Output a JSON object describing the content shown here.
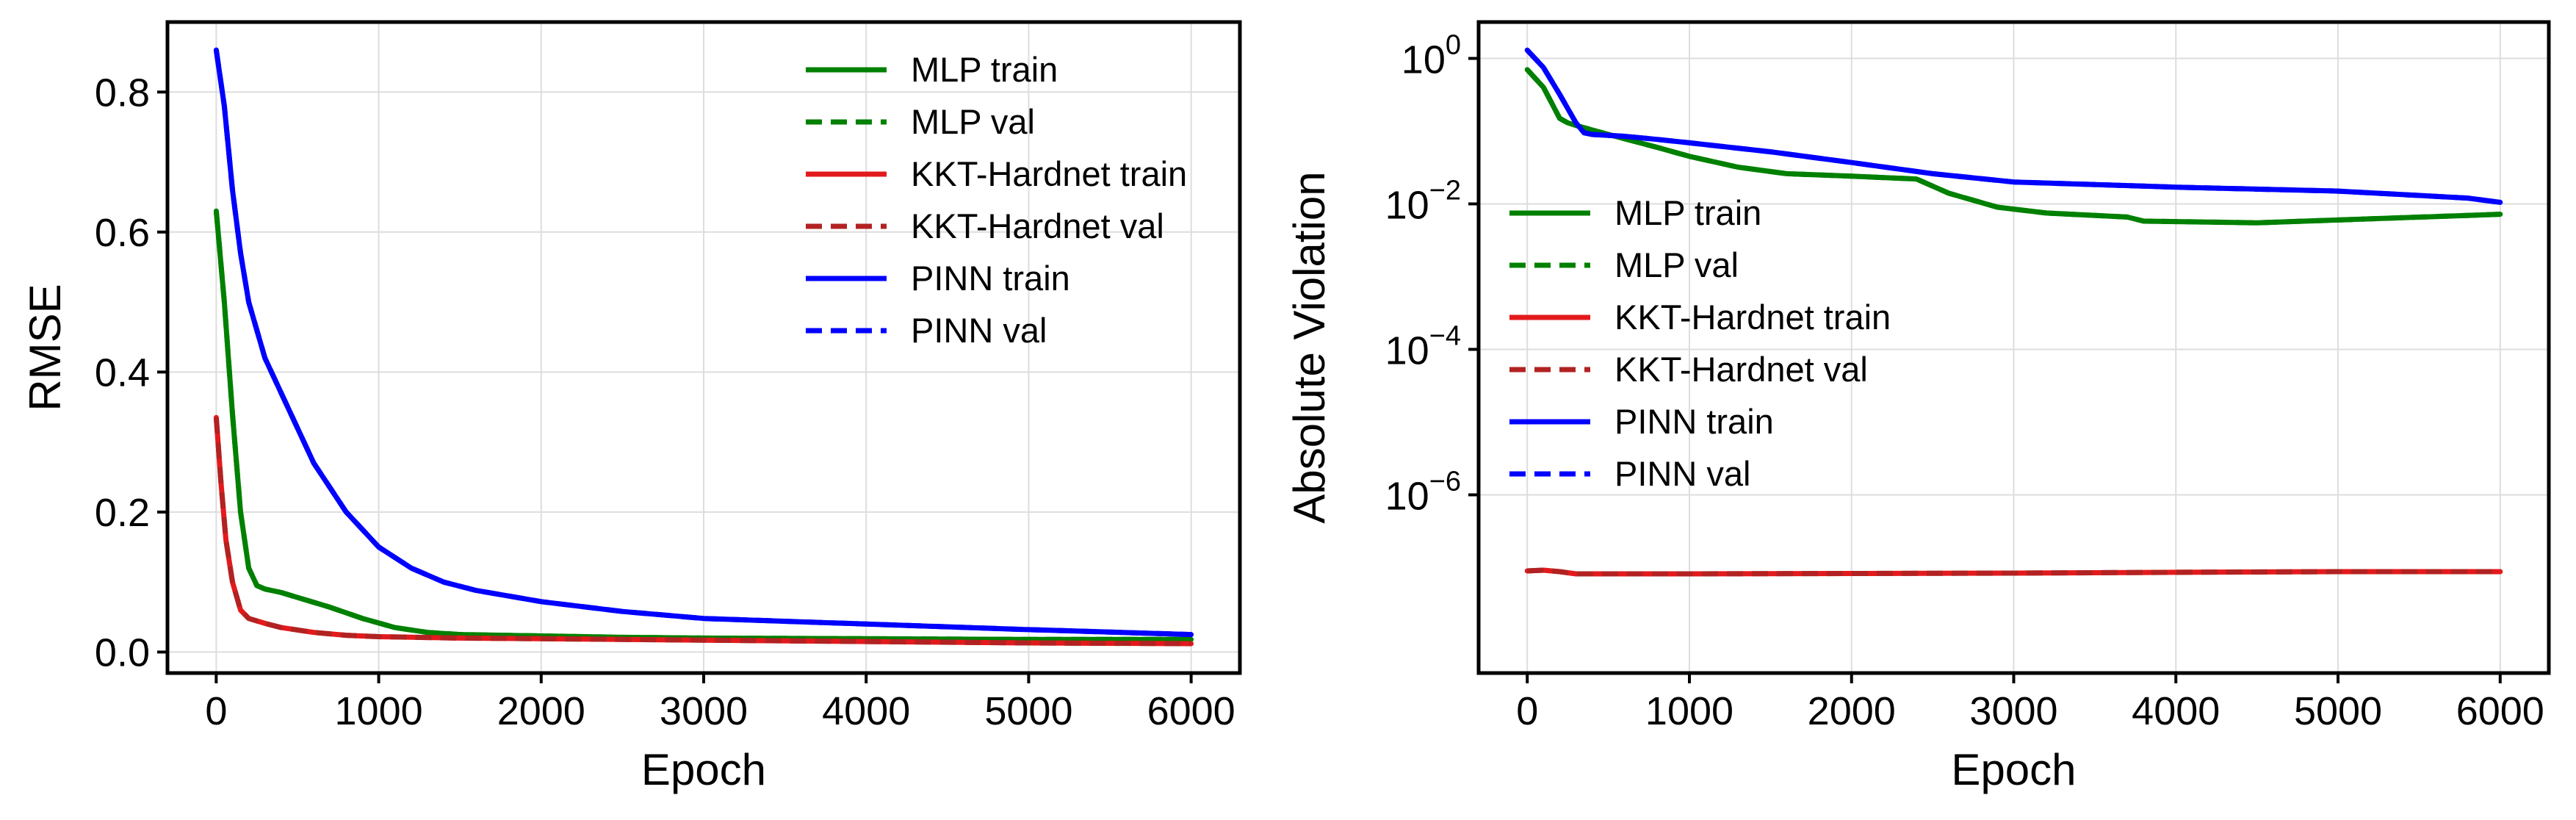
{
  "chart_data": [
    {
      "type": "line",
      "ylabel": "RMSE",
      "xlabel": "Epoch",
      "xlim": [
        -300,
        6300
      ],
      "ylim": [
        -0.03,
        0.9
      ],
      "yscale": "linear",
      "grid": true,
      "legend_position": "top-right",
      "xticks": [
        0,
        1000,
        2000,
        3000,
        4000,
        5000,
        6000
      ],
      "xtick_labels": [
        "0",
        "1000",
        "2000",
        "3000",
        "4000",
        "5000",
        "6000"
      ],
      "yticks": [
        0.0,
        0.2,
        0.4,
        0.6,
        0.8
      ],
      "ytick_labels": [
        "0.0",
        "0.2",
        "0.4",
        "0.6",
        "0.8"
      ],
      "series": [
        {
          "name": "MLP train",
          "color": "#008000",
          "dash": false,
          "x": [
            0,
            50,
            100,
            150,
            200,
            250,
            300,
            400,
            500,
            700,
            900,
            1100,
            1300,
            1500,
            2000,
            2500,
            3000,
            4000,
            5000,
            6000
          ],
          "y": [
            0.63,
            0.5,
            0.34,
            0.2,
            0.12,
            0.095,
            0.09,
            0.085,
            0.078,
            0.064,
            0.048,
            0.035,
            0.028,
            0.025,
            0.023,
            0.021,
            0.02,
            0.019,
            0.018,
            0.018
          ]
        },
        {
          "name": "MLP val",
          "color": "#008000",
          "dash": true,
          "x": [
            0,
            50,
            100,
            150,
            200,
            250,
            300,
            400,
            500,
            700,
            900,
            1100,
            1300,
            1500,
            2000,
            2500,
            3000,
            4000,
            5000,
            6000
          ],
          "y": [
            0.63,
            0.5,
            0.34,
            0.2,
            0.12,
            0.095,
            0.09,
            0.085,
            0.078,
            0.064,
            0.048,
            0.035,
            0.028,
            0.025,
            0.023,
            0.021,
            0.02,
            0.019,
            0.018,
            0.018
          ]
        },
        {
          "name": "KKT-Hardnet train",
          "color": "#e31a1c",
          "dash": false,
          "x": [
            0,
            30,
            60,
            100,
            150,
            200,
            300,
            400,
            600,
            800,
            1000,
            1500,
            2000,
            3000,
            4000,
            5000,
            6000
          ],
          "y": [
            0.335,
            0.24,
            0.16,
            0.1,
            0.06,
            0.048,
            0.041,
            0.035,
            0.028,
            0.024,
            0.022,
            0.02,
            0.019,
            0.017,
            0.015,
            0.013,
            0.012
          ]
        },
        {
          "name": "KKT-Hardnet val",
          "color": "#b22222",
          "dash": true,
          "x": [
            0,
            30,
            60,
            100,
            150,
            200,
            300,
            400,
            600,
            800,
            1000,
            1500,
            2000,
            3000,
            4000,
            5000,
            6000
          ],
          "y": [
            0.335,
            0.24,
            0.16,
            0.1,
            0.06,
            0.048,
            0.041,
            0.035,
            0.028,
            0.024,
            0.022,
            0.02,
            0.019,
            0.017,
            0.015,
            0.013,
            0.012
          ]
        },
        {
          "name": "PINN train",
          "color": "#0000ff",
          "dash": false,
          "x": [
            0,
            50,
            100,
            150,
            200,
            300,
            400,
            500,
            600,
            800,
            1000,
            1200,
            1400,
            1600,
            2000,
            2500,
            3000,
            4000,
            5000,
            6000
          ],
          "y": [
            0.86,
            0.78,
            0.66,
            0.57,
            0.5,
            0.42,
            0.37,
            0.32,
            0.27,
            0.2,
            0.15,
            0.12,
            0.1,
            0.088,
            0.072,
            0.058,
            0.048,
            0.04,
            0.032,
            0.025
          ]
        },
        {
          "name": "PINN val",
          "color": "#0000ff",
          "dash": true,
          "x": [
            0,
            50,
            100,
            150,
            200,
            300,
            400,
            500,
            600,
            800,
            1000,
            1200,
            1400,
            1600,
            2000,
            2500,
            3000,
            4000,
            5000,
            6000
          ],
          "y": [
            0.86,
            0.78,
            0.66,
            0.57,
            0.5,
            0.42,
            0.37,
            0.32,
            0.27,
            0.2,
            0.15,
            0.12,
            0.1,
            0.088,
            0.072,
            0.058,
            0.048,
            0.04,
            0.032,
            0.025
          ]
        }
      ]
    },
    {
      "type": "line",
      "ylabel": "Absolute Violation",
      "xlabel": "Epoch",
      "xlim": [
        -300,
        6300
      ],
      "ylim_log10": [
        -8.45,
        0.5
      ],
      "yscale": "log",
      "grid": true,
      "legend_position": "center-left",
      "xticks": [
        0,
        1000,
        2000,
        3000,
        4000,
        5000,
        6000
      ],
      "xtick_labels": [
        "0",
        "1000",
        "2000",
        "3000",
        "4000",
        "5000",
        "6000"
      ],
      "yticks_log10": [
        0,
        -2,
        -4,
        -6
      ],
      "ytick_base": "10",
      "ytick_exponents": [
        "0",
        "−2",
        "−4",
        "−6"
      ],
      "series": [
        {
          "name": "MLP train",
          "color": "#008000",
          "dash": false,
          "x": [
            0,
            100,
            200,
            250,
            300,
            500,
            800,
            1000,
            1300,
            1600,
            2000,
            2400,
            2600,
            2900,
            3200,
            3700,
            3800,
            4500,
            5000,
            6000
          ],
          "y": [
            0.7,
            0.4,
            0.15,
            0.13,
            0.12,
            0.09,
            0.06,
            0.045,
            0.032,
            0.026,
            0.024,
            0.022,
            0.014,
            0.009,
            0.0075,
            0.0066,
            0.0058,
            0.0055,
            0.006,
            0.0072
          ]
        },
        {
          "name": "MLP val",
          "color": "#008000",
          "dash": true,
          "x": [
            0,
            100,
            200,
            250,
            300,
            500,
            800,
            1000,
            1300,
            1600,
            2000,
            2400,
            2600,
            2900,
            3200,
            3700,
            3800,
            4500,
            5000,
            6000
          ],
          "y": [
            0.7,
            0.4,
            0.15,
            0.13,
            0.12,
            0.09,
            0.06,
            0.045,
            0.032,
            0.026,
            0.024,
            0.022,
            0.014,
            0.009,
            0.0075,
            0.0066,
            0.0058,
            0.0055,
            0.006,
            0.0072
          ]
        },
        {
          "name": "KKT-Hardnet train",
          "color": "#e31a1c",
          "dash": false,
          "x": [
            0,
            100,
            200,
            300,
            1000,
            2000,
            3000,
            4000,
            5000,
            6000
          ],
          "y": [
            9e-08,
            9.2e-08,
            8.8e-08,
            8.2e-08,
            8.2e-08,
            8.3e-08,
            8.4e-08,
            8.6e-08,
            8.8e-08,
            8.8e-08
          ]
        },
        {
          "name": "KKT-Hardnet val",
          "color": "#b22222",
          "dash": true,
          "x": [
            0,
            100,
            200,
            300,
            1000,
            2000,
            3000,
            4000,
            5000,
            6000
          ],
          "y": [
            9e-08,
            9.2e-08,
            8.8e-08,
            8.2e-08,
            8.2e-08,
            8.3e-08,
            8.4e-08,
            8.6e-08,
            8.8e-08,
            8.8e-08
          ]
        },
        {
          "name": "PINN train",
          "color": "#0000ff",
          "dash": false,
          "x": [
            0,
            100,
            200,
            300,
            350,
            400,
            600,
            800,
            1000,
            1500,
            2000,
            2500,
            3000,
            4000,
            5000,
            5800,
            6000
          ],
          "y": [
            1.3,
            0.75,
            0.32,
            0.13,
            0.095,
            0.09,
            0.085,
            0.077,
            0.069,
            0.052,
            0.037,
            0.026,
            0.02,
            0.017,
            0.015,
            0.012,
            0.0105
          ]
        },
        {
          "name": "PINN val",
          "color": "#0000ff",
          "dash": true,
          "x": [
            0,
            100,
            200,
            300,
            350,
            400,
            600,
            800,
            1000,
            1500,
            2000,
            2500,
            3000,
            4000,
            5000,
            5800,
            6000
          ],
          "y": [
            1.3,
            0.75,
            0.32,
            0.13,
            0.095,
            0.09,
            0.085,
            0.077,
            0.069,
            0.052,
            0.037,
            0.026,
            0.02,
            0.017,
            0.015,
            0.012,
            0.0105
          ]
        }
      ]
    }
  ]
}
